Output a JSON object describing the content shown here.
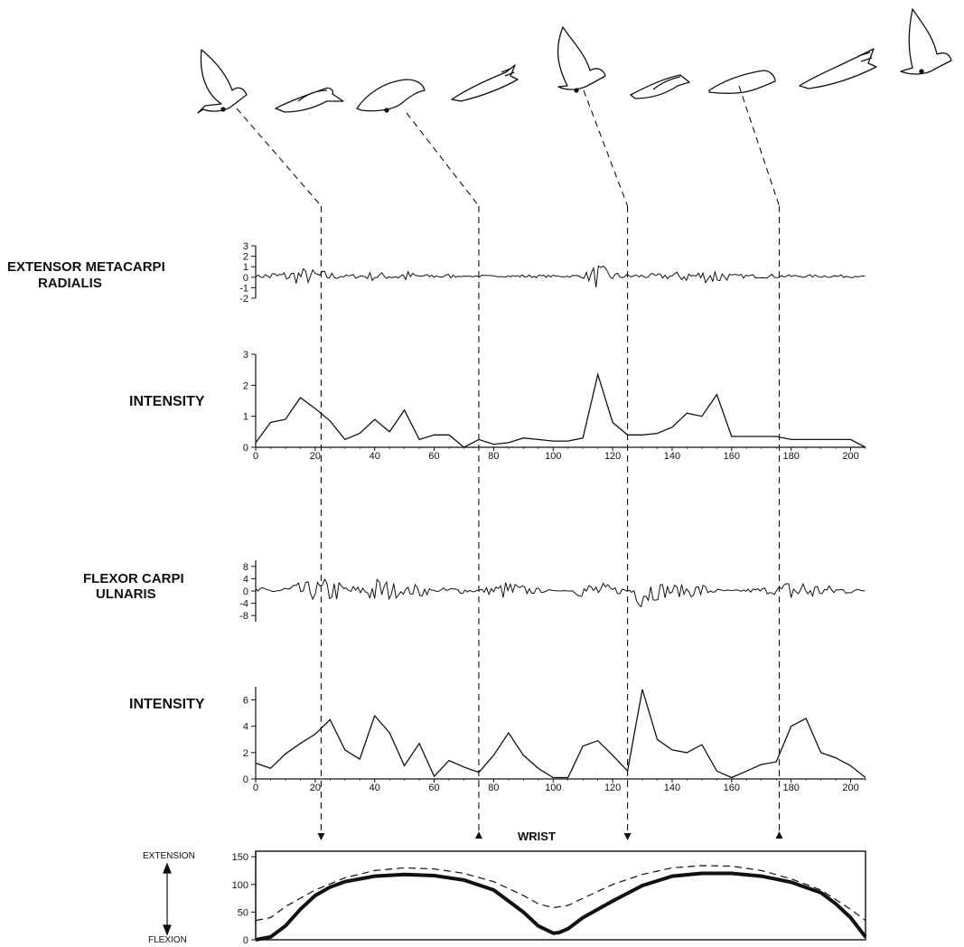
{
  "figure": {
    "emg_label_1": "EXTENSOR METACARPI",
    "emg_label_2": "RADIALIS",
    "intensity_label": "INTENSITY",
    "emg_label_3": "FLEXOR CARPI",
    "emg_label_4": "ULNARIS",
    "wrist_title": "WRIST",
    "extension_label": "EXTENSION",
    "flexion_label": "FLEXION"
  },
  "chart_data": [
    {
      "type": "line",
      "name": "extensor-emg",
      "ylim": [
        -2,
        3
      ],
      "yticks": [
        "3",
        "2",
        "1",
        "0",
        "-1",
        "-2"
      ],
      "ytick_values": [
        3,
        2,
        1,
        0,
        -1,
        -2
      ],
      "xlim": [
        0,
        205
      ]
    },
    {
      "type": "line",
      "name": "extensor-intensity",
      "ylim": [
        0,
        3
      ],
      "yticks": [
        "3",
        "2",
        "1",
        "0"
      ],
      "ytick_values": [
        3,
        2,
        1,
        0
      ],
      "xlim": [
        0,
        205
      ],
      "xticks": [
        "0",
        "20",
        "40",
        "60",
        "80",
        "100",
        "120",
        "140",
        "160",
        "180",
        "200"
      ],
      "xtick_values": [
        0,
        20,
        40,
        60,
        80,
        100,
        120,
        140,
        160,
        180,
        200
      ],
      "x": [
        0,
        5,
        10,
        15,
        20,
        25,
        30,
        35,
        40,
        45,
        50,
        55,
        60,
        65,
        70,
        75,
        80,
        85,
        90,
        95,
        100,
        105,
        110,
        115,
        120,
        125,
        130,
        135,
        140,
        145,
        150,
        155,
        160,
        165,
        170,
        175,
        180,
        185,
        190,
        195,
        200,
        205
      ],
      "y": [
        0.15,
        0.8,
        0.9,
        1.6,
        1.25,
        0.85,
        0.25,
        0.45,
        0.9,
        0.5,
        1.2,
        0.25,
        0.4,
        0.4,
        0.0,
        0.25,
        0.1,
        0.15,
        0.3,
        0.25,
        0.2,
        0.2,
        0.3,
        2.35,
        0.8,
        0.4,
        0.4,
        0.45,
        0.65,
        1.1,
        1.0,
        1.7,
        0.35,
        0.35,
        0.35,
        0.35,
        0.25,
        0.25,
        0.25,
        0.25,
        0.25,
        0.0
      ]
    },
    {
      "type": "line",
      "name": "flexor-emg",
      "ylim": [
        -10,
        10
      ],
      "yticks": [
        "8",
        "4",
        "0",
        "-4",
        "-8"
      ],
      "ytick_values": [
        8,
        4,
        0,
        -4,
        -8
      ],
      "xlim": [
        0,
        205
      ]
    },
    {
      "type": "line",
      "name": "flexor-intensity",
      "ylim": [
        0,
        7
      ],
      "yticks": [
        "6",
        "4",
        "2",
        "0"
      ],
      "ytick_values": [
        6,
        4,
        2,
        0
      ],
      "xlim": [
        0,
        205
      ],
      "xticks": [
        "0",
        "20",
        "40",
        "60",
        "80",
        "100",
        "120",
        "140",
        "160",
        "180",
        "200"
      ],
      "xtick_values": [
        0,
        20,
        40,
        60,
        80,
        100,
        120,
        140,
        160,
        180,
        200
      ],
      "x": [
        0,
        5,
        10,
        15,
        20,
        25,
        30,
        35,
        40,
        45,
        50,
        55,
        60,
        65,
        70,
        75,
        80,
        85,
        90,
        95,
        100,
        105,
        110,
        115,
        120,
        125,
        130,
        135,
        140,
        145,
        150,
        155,
        160,
        165,
        170,
        175,
        180,
        185,
        190,
        195,
        200,
        205
      ],
      "y": [
        1.2,
        0.8,
        1.9,
        2.7,
        3.4,
        4.5,
        2.2,
        1.5,
        4.8,
        3.5,
        1.0,
        2.7,
        0.2,
        1.4,
        0.9,
        0.5,
        1.8,
        3.5,
        1.8,
        0.8,
        0.1,
        0.1,
        2.5,
        2.9,
        1.8,
        0.6,
        6.8,
        3.0,
        2.2,
        2.0,
        2.6,
        0.6,
        0.1,
        0.6,
        1.1,
        1.3,
        4.0,
        4.6,
        2.0,
        1.6,
        1.0,
        0.1
      ]
    },
    {
      "type": "line",
      "name": "wrist-angle",
      "title": "WRIST",
      "ylim": [
        0,
        160
      ],
      "yticks": [
        "150",
        "100",
        "50",
        "0"
      ],
      "ytick_values": [
        150,
        100,
        50,
        0
      ],
      "xlim": [
        0,
        205
      ],
      "series": [
        {
          "style": "solid-thick",
          "x": [
            0,
            5,
            10,
            15,
            20,
            25,
            30,
            40,
            50,
            60,
            70,
            80,
            90,
            95,
            100,
            102,
            105,
            110,
            120,
            130,
            140,
            150,
            160,
            170,
            180,
            190,
            195,
            200,
            205
          ],
          "y": [
            0,
            5,
            25,
            55,
            80,
            95,
            105,
            115,
            118,
            116,
            108,
            90,
            50,
            25,
            12,
            13,
            20,
            40,
            70,
            98,
            115,
            120,
            120,
            115,
            104,
            85,
            65,
            40,
            5
          ]
        },
        {
          "style": "dashed",
          "x": [
            0,
            5,
            10,
            20,
            30,
            40,
            50,
            60,
            70,
            80,
            90,
            95,
            100,
            105,
            110,
            120,
            130,
            140,
            150,
            160,
            170,
            180,
            190,
            200,
            205
          ],
          "y": [
            35,
            40,
            60,
            90,
            112,
            125,
            130,
            128,
            120,
            105,
            80,
            65,
            58,
            62,
            75,
            100,
            118,
            130,
            134,
            133,
            125,
            110,
            90,
            55,
            35
          ]
        }
      ]
    }
  ],
  "event_lines": {
    "x_values": [
      22,
      75,
      125,
      176
    ]
  }
}
